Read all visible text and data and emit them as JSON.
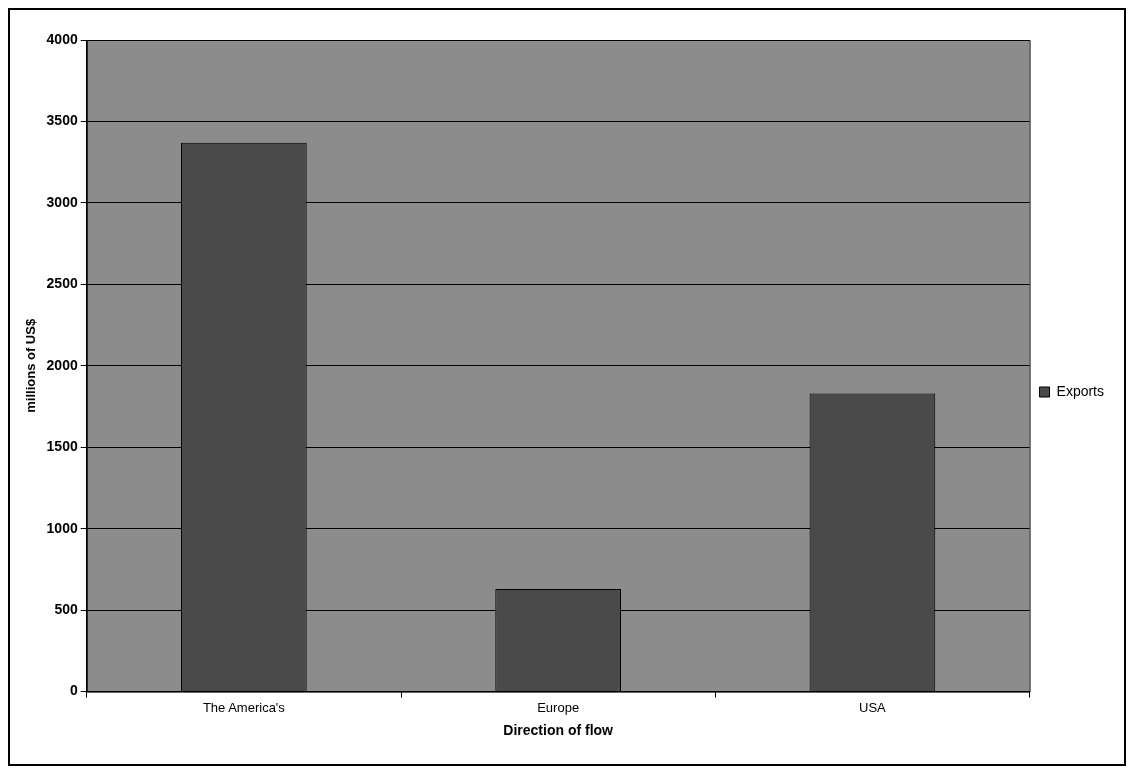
{
  "chart_data": {
    "type": "bar",
    "xlabel": "Direction of flow",
    "ylabel": "millions of US$",
    "categories": [
      "The America's",
      "Europe",
      "USA"
    ],
    "series": [
      {
        "name": "Exports",
        "color": "#4a4a4a",
        "values": [
          3370,
          630,
          1830
        ]
      }
    ],
    "ylim": [
      0,
      4000
    ],
    "yticks": [
      0,
      500,
      1000,
      1500,
      2000,
      2500,
      3000,
      3500,
      4000
    ],
    "grid": "y",
    "legend": "right"
  }
}
